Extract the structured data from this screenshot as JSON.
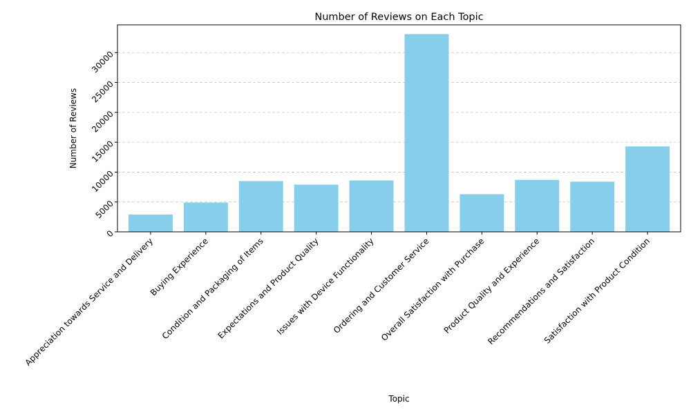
{
  "chart_data": {
    "type": "bar",
    "title": "Number of Reviews on Each Topic",
    "xlabel": "Topic",
    "ylabel": "Number of Reviews",
    "categories": [
      "Appreciation towards Service and Delivery",
      "Buying Experience",
      "Condition and Packaging of Items",
      "Expectations and Product Quality",
      "Issues with Device Functionality",
      "Ordering and Customer Service",
      "Overall Satisfaction with Purchase",
      "Product Quality and Experience",
      "Recommendations and Satisfaction",
      "Satisfaction with Product Condition"
    ],
    "values": [
      2900,
      4900,
      8500,
      7900,
      8600,
      33100,
      6300,
      8700,
      8400,
      14300
    ],
    "ylim": [
      0,
      34650
    ],
    "yticks": [
      0,
      5000,
      10000,
      15000,
      20000,
      25000,
      30000
    ],
    "ytick_labels": [
      "0",
      "5000",
      "10000",
      "15000",
      "20000",
      "25000",
      "30000"
    ],
    "grid": "y-dashed",
    "bar_color": "#87ceeb",
    "grid_color": "#c8c8c8"
  }
}
